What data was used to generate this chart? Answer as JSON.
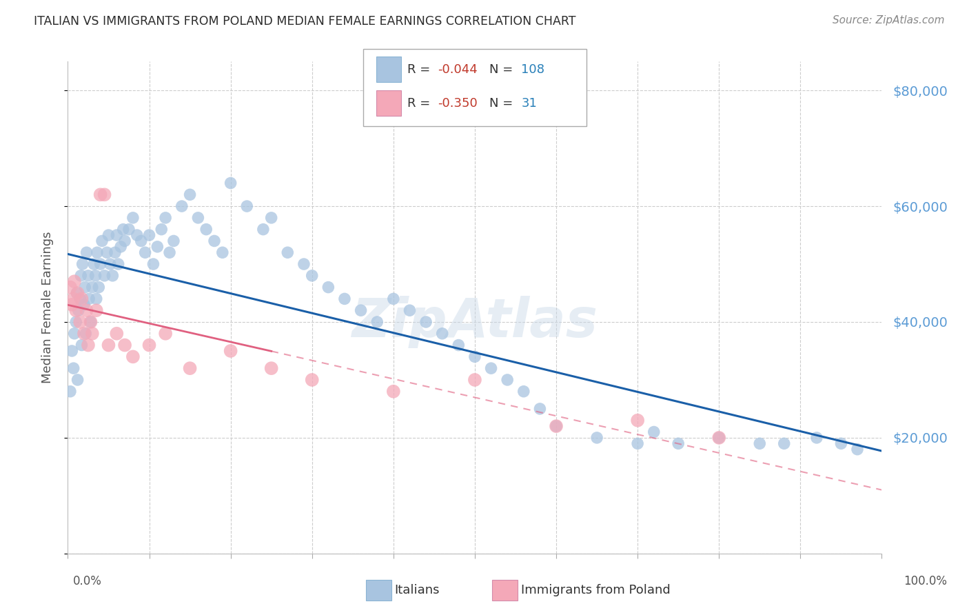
{
  "title": "ITALIAN VS IMMIGRANTS FROM POLAND MEDIAN FEMALE EARNINGS CORRELATION CHART",
  "source": "Source: ZipAtlas.com",
  "ylabel": "Median Female Earnings",
  "yticks": [
    0,
    20000,
    40000,
    60000,
    80000
  ],
  "ytick_labels": [
    "",
    "$20,000",
    "$40,000",
    "$60,000",
    "$80,000"
  ],
  "watermark": "ZipAtlas",
  "blue_color": "#a8c4e0",
  "pink_color": "#f4a8b8",
  "blue_line_color": "#1a5fa8",
  "pink_line_color": "#e06080",
  "title_color": "#2c2c2c",
  "axis_label_color": "#555555",
  "right_tick_color": "#5b9bd5",
  "legend_R_color": "#c0392b",
  "legend_N_color": "#2980b9",
  "blue_scatter_x": [
    0.3,
    0.5,
    0.7,
    0.8,
    1.0,
    1.1,
    1.2,
    1.3,
    1.5,
    1.6,
    1.7,
    1.8,
    2.0,
    2.1,
    2.2,
    2.3,
    2.5,
    2.6,
    2.8,
    3.0,
    3.2,
    3.4,
    3.5,
    3.6,
    3.8,
    4.0,
    4.2,
    4.5,
    4.8,
    5.0,
    5.2,
    5.5,
    5.8,
    6.0,
    6.2,
    6.5,
    6.8,
    7.0,
    7.5,
    8.0,
    8.5,
    9.0,
    9.5,
    10.0,
    10.5,
    11.0,
    11.5,
    12.0,
    12.5,
    13.0,
    14.0,
    15.0,
    16.0,
    17.0,
    18.0,
    19.0,
    20.0,
    22.0,
    24.0,
    25.0,
    27.0,
    29.0,
    30.0,
    32.0,
    34.0,
    36.0,
    38.0,
    40.0,
    42.0,
    44.0,
    46.0,
    48.0,
    50.0,
    52.0,
    54.0,
    56.0,
    58.0,
    60.0,
    65.0,
    70.0,
    72.0,
    75.0,
    80.0,
    85.0,
    88.0,
    92.0,
    95.0,
    97.0
  ],
  "blue_scatter_y": [
    28000,
    35000,
    32000,
    38000,
    40000,
    45000,
    30000,
    42000,
    44000,
    48000,
    36000,
    50000,
    43000,
    46000,
    38000,
    52000,
    48000,
    44000,
    40000,
    46000,
    50000,
    48000,
    44000,
    52000,
    46000,
    50000,
    54000,
    48000,
    52000,
    55000,
    50000,
    48000,
    52000,
    55000,
    50000,
    53000,
    56000,
    54000,
    56000,
    58000,
    55000,
    54000,
    52000,
    55000,
    50000,
    53000,
    56000,
    58000,
    52000,
    54000,
    60000,
    62000,
    58000,
    56000,
    54000,
    52000,
    64000,
    60000,
    56000,
    58000,
    52000,
    50000,
    48000,
    46000,
    44000,
    42000,
    40000,
    44000,
    42000,
    40000,
    38000,
    36000,
    34000,
    32000,
    30000,
    28000,
    25000,
    22000,
    20000,
    19000,
    21000,
    19000,
    20000,
    19000,
    19000,
    20000,
    19000,
    18000
  ],
  "pink_scatter_x": [
    0.3,
    0.5,
    0.7,
    0.8,
    1.0,
    1.2,
    1.5,
    1.7,
    2.0,
    2.3,
    2.5,
    2.8,
    3.0,
    3.5,
    4.0,
    4.5,
    5.0,
    6.0,
    7.0,
    8.0,
    10.0,
    12.0,
    15.0,
    20.0,
    25.0,
    30.0,
    40.0,
    50.0,
    60.0,
    70.0,
    80.0
  ],
  "pink_scatter_y": [
    46000,
    43000,
    44000,
    47000,
    42000,
    45000,
    40000,
    44000,
    38000,
    42000,
    36000,
    40000,
    38000,
    42000,
    62000,
    62000,
    36000,
    38000,
    36000,
    34000,
    36000,
    38000,
    32000,
    35000,
    32000,
    30000,
    28000,
    30000,
    22000,
    23000,
    20000
  ],
  "pink_line_solid_end_x": 25,
  "ylim": [
    0,
    85000
  ],
  "xlim": [
    0,
    100
  ]
}
